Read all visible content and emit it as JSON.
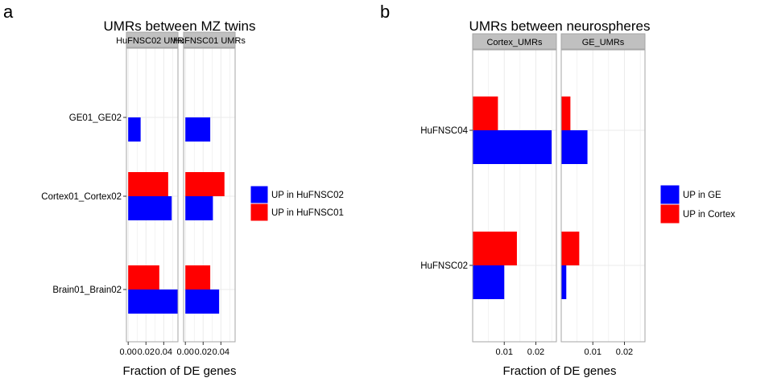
{
  "colors": {
    "up_a": "#0000FF",
    "up_b": "#FF0000",
    "panel_bg": "#FFFFFF",
    "strip_bg": "#C0C0C0",
    "grid": "#EBEBEB",
    "panel_border": "#A6A6A6"
  },
  "chart_data": [
    {
      "type": "bar",
      "orientation": "horizontal",
      "panel_letter": "a",
      "title": "UMRs between MZ twins",
      "xlabel": "Fraction of DE genes",
      "ylabel": "",
      "xlim": [
        -0.002,
        0.056
      ],
      "x_ticks": [
        0.0,
        0.02,
        0.04
      ],
      "x_tick_labels": [
        "0.00",
        "0.02",
        "0.04"
      ],
      "facets": [
        "HuFNSC02 UMRs",
        "HuFNSC01 UMRs"
      ],
      "categories": [
        "GE01_GE02",
        "Cortex01_Cortex02",
        "Brain01_Brain02"
      ],
      "legend": {
        "position": "right",
        "entries": [
          "UP in HuFNSC02",
          "UP in HuFNSC01"
        ]
      },
      "series": [
        {
          "name": "UP in HuFNSC02",
          "color": "#0000FF",
          "values": [
            [
              0.014,
              0.049,
              0.056
            ],
            [
              0.028,
              0.031,
              0.038
            ]
          ]
        },
        {
          "name": "UP in HuFNSC01",
          "color": "#FF0000",
          "values": [
            [
              0.0,
              0.045,
              0.035
            ],
            [
              0.0,
              0.044,
              0.028
            ]
          ]
        }
      ]
    },
    {
      "type": "bar",
      "orientation": "horizontal",
      "panel_letter": "b",
      "title": "UMRs between neurospheres",
      "xlabel": "Fraction of DE genes",
      "ylabel": "",
      "xlim": [
        0.0,
        0.0265
      ],
      "x_ticks": [
        0.01,
        0.02
      ],
      "x_tick_labels": [
        "0.01",
        "0.02"
      ],
      "facets": [
        "Cortex_UMRs",
        "GE_UMRs"
      ],
      "categories": [
        "HuFNSC04",
        "HuFNSC02"
      ],
      "legend": {
        "position": "right",
        "entries": [
          "UP in GE",
          "UP in Cortex"
        ]
      },
      "series": [
        {
          "name": "UP in GE",
          "color": "#0000FF",
          "values": [
            [
              0.025,
              0.01
            ],
            [
              0.0083,
              0.0016
            ]
          ]
        },
        {
          "name": "UP in Cortex",
          "color": "#FF0000",
          "values": [
            [
              0.008,
              0.014
            ],
            [
              0.0029,
              0.0057
            ]
          ]
        }
      ]
    }
  ]
}
